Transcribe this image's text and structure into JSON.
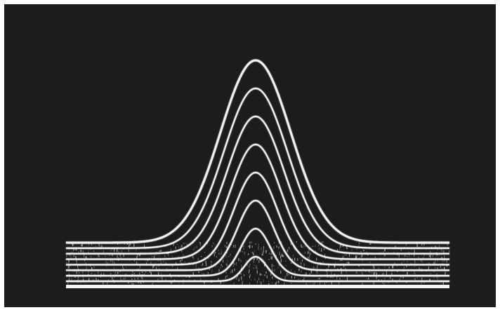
{
  "image": {
    "subject": "oscilloscope-trace-photograph",
    "background_color": "#1c1c1c",
    "trace_color": "#f2f2f2",
    "frame_color": "#ffffff",
    "trace_count": 8
  }
}
